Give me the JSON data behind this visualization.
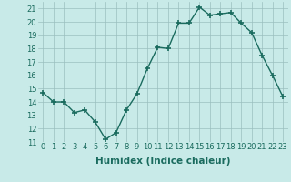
{
  "x": [
    0,
    1,
    2,
    3,
    4,
    5,
    6,
    7,
    8,
    9,
    10,
    11,
    12,
    13,
    14,
    15,
    16,
    17,
    18,
    19,
    20,
    21,
    22,
    23
  ],
  "y": [
    14.7,
    14.0,
    14.0,
    13.2,
    13.4,
    12.5,
    11.2,
    11.7,
    13.4,
    14.6,
    16.5,
    18.1,
    18.0,
    19.9,
    19.9,
    21.1,
    20.5,
    20.6,
    20.7,
    19.9,
    19.2,
    17.5,
    16.0,
    14.4
  ],
  "line_color": "#1a6b5e",
  "marker": "+",
  "marker_size": 4,
  "bg_color": "#c8eae8",
  "grid_color": "#9bbfbf",
  "xlabel": "Humidex (Indice chaleur)",
  "xlim": [
    -0.5,
    23.5
  ],
  "ylim": [
    11,
    21.5
  ],
  "yticks": [
    11,
    12,
    13,
    14,
    15,
    16,
    17,
    18,
    19,
    20,
    21
  ],
  "xticks": [
    0,
    1,
    2,
    3,
    4,
    5,
    6,
    7,
    8,
    9,
    10,
    11,
    12,
    13,
    14,
    15,
    16,
    17,
    18,
    19,
    20,
    21,
    22,
    23
  ],
  "tick_label_fontsize": 6,
  "xlabel_fontsize": 7.5,
  "tick_color": "#1a6b5e",
  "label_color": "#1a6b5e",
  "line_width": 1.0,
  "marker_thickness": 1.2
}
